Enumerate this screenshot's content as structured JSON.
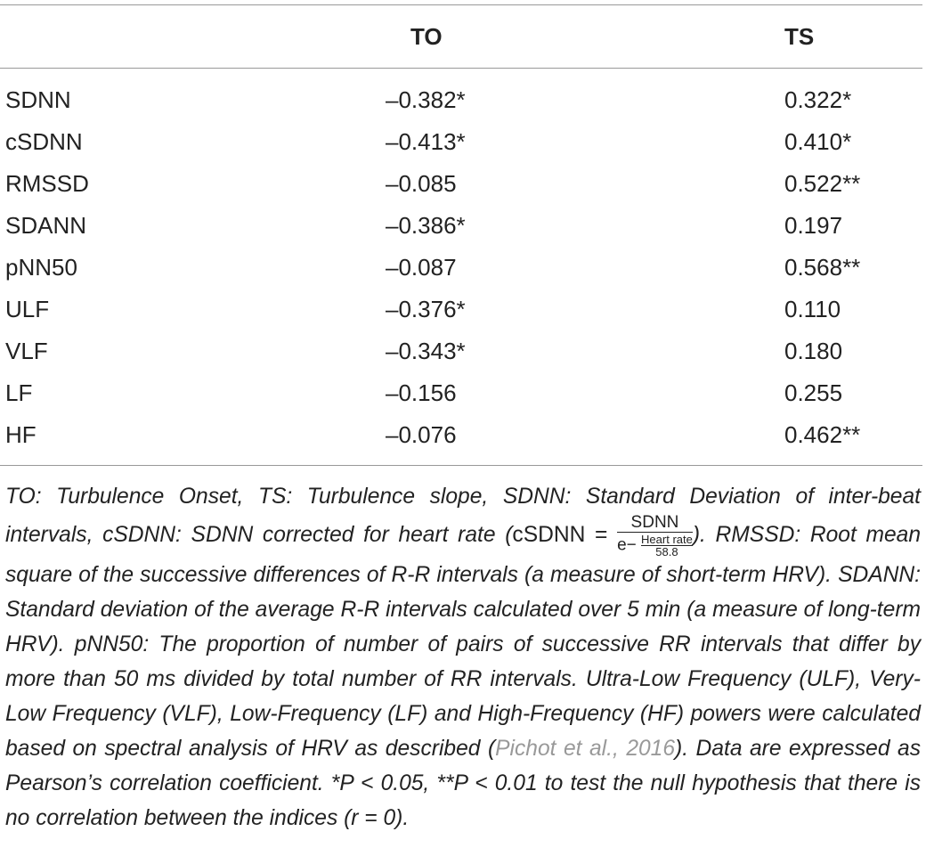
{
  "table": {
    "header": [
      "TO",
      "TS"
    ],
    "rows": [
      [
        "SDNN",
        "–0.382*",
        "0.322*"
      ],
      [
        "cSDNN",
        "–0.413*",
        "0.410*"
      ],
      [
        "RMSSD",
        "–0.085",
        "0.522**"
      ],
      [
        "SDANN",
        "–0.386*",
        "0.197"
      ],
      [
        "pNN50",
        "–0.087",
        "0.568**"
      ],
      [
        "ULF",
        "–0.376*",
        "0.110"
      ],
      [
        "VLF",
        "–0.343*",
        "0.180"
      ],
      [
        "LF",
        "–0.156",
        "0.255"
      ],
      [
        "HF",
        "–0.076",
        "0.462**"
      ]
    ]
  },
  "footnote": {
    "part1": "TO: Turbulence Onset, TS: Turbulence slope, SDNN: Standard Deviation of inter-beat intervals, cSDNN: SDNN corrected for heart rate (",
    "formula": {
      "lhs": "cSDNN =",
      "numerator": "SDNN",
      "base": "e−",
      "exp_numerator": "Heart rate",
      "exp_denominator": "58.8"
    },
    "part2": "). RMSSD: Root mean square of the successive differences of R-R intervals (a measure of short-term HRV). SDANN: Standard deviation of the average R-R intervals calculated over 5 min (a measure of long-term HRV). pNN50: The proportion of number of pairs of successive RR intervals that differ by more than 50 ms divided by total number of RR intervals. Ultra-Low Frequency (ULF), Very-Low Frequency (VLF), Low-Frequency (LF) and High-Frequency (HF) powers were calculated based on spectral analysis of HRV as described (",
    "citation": "Pichot et al., 2016",
    "part3": "). Data are expressed as Pearson’s correlation coefficient. *P < 0.05, **P < 0.01 to test the null hypothesis that there is no correlation between the indices (r = 0)."
  }
}
